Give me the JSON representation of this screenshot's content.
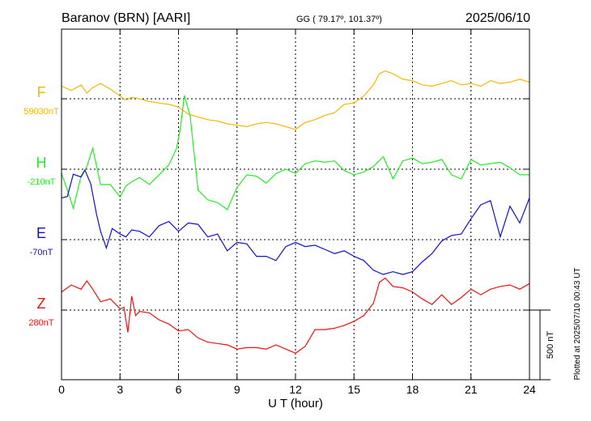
{
  "header": {
    "station": "Baranov (BRN)  [AARI]",
    "coords": "GG ( 79.17º, 101.37º)",
    "date": "2025/06/10"
  },
  "plotted_note": "Plotted at 2025/07/10 00:43 UT",
  "chart_data": {
    "type": "line",
    "xlabel": "U T (hour)",
    "ylabel": "",
    "xlim": [
      0,
      24
    ],
    "x_ticks": [
      0,
      3,
      6,
      9,
      12,
      15,
      18,
      21,
      24
    ],
    "grid": true,
    "scale_bar_label": "500 nT",
    "scale_bar_value_nT": 500,
    "series": [
      {
        "name": "F",
        "baseline_label": "59030nT",
        "baseline_nT": 59030,
        "color": "#f5b800",
        "x": [
          0,
          0.5,
          1,
          1.3,
          1.6,
          2,
          2.5,
          3,
          3.3,
          3.6,
          4,
          4.5,
          5,
          5.5,
          6,
          6.5,
          7,
          7.5,
          8,
          8.5,
          9,
          9.5,
          10,
          10.5,
          11,
          11.5,
          12,
          12.5,
          13,
          13.5,
          14,
          14.5,
          15,
          15.5,
          16,
          16.3,
          16.6,
          17,
          17.5,
          18,
          18.5,
          19,
          19.5,
          20,
          20.5,
          21,
          21.5,
          22,
          22.5,
          23,
          23.5,
          24
        ],
        "y": [
          90,
          60,
          100,
          40,
          80,
          110,
          70,
          20,
          -10,
          10,
          0,
          -20,
          -30,
          -40,
          -60,
          -110,
          -130,
          -150,
          -160,
          -180,
          -190,
          -200,
          -180,
          -170,
          -180,
          -200,
          -220,
          -170,
          -150,
          -120,
          -100,
          -40,
          -30,
          20,
          100,
          180,
          200,
          180,
          140,
          130,
          100,
          90,
          110,
          130,
          100,
          110,
          90,
          130,
          110,
          120,
          140,
          120
        ]
      },
      {
        "name": "H",
        "baseline_label": "-210nT",
        "baseline_nT": -210,
        "color": "#22ee22",
        "x": [
          0,
          0.3,
          0.6,
          1,
          1.3,
          1.6,
          2,
          2.5,
          3,
          3.3,
          3.6,
          4,
          4.5,
          5,
          5.5,
          5.9,
          6.1,
          6.3,
          6.6,
          7,
          7.5,
          8,
          8.5,
          9,
          9.5,
          10,
          10.5,
          11,
          11.5,
          12,
          12.5,
          13,
          13.5,
          14,
          14.5,
          15,
          15.5,
          16,
          16.5,
          17,
          17.5,
          18,
          18.5,
          19,
          19.5,
          20,
          20.5,
          21,
          21.5,
          22,
          22.5,
          23,
          23.5,
          24
        ],
        "y": [
          -30,
          -150,
          -280,
          -50,
          20,
          150,
          -110,
          -110,
          -200,
          -120,
          -90,
          -60,
          -110,
          -40,
          30,
          150,
          300,
          530,
          380,
          -150,
          -220,
          -240,
          -290,
          -130,
          -40,
          -50,
          -100,
          -30,
          0,
          -30,
          40,
          60,
          50,
          60,
          -10,
          -40,
          -20,
          20,
          90,
          -70,
          60,
          80,
          40,
          50,
          70,
          -40,
          -70,
          70,
          30,
          40,
          50,
          10,
          -40,
          -40
        ]
      },
      {
        "name": "E",
        "baseline_label": "-70nT",
        "baseline_nT": -70,
        "color": "#1111cc",
        "x": [
          0,
          0.3,
          0.6,
          1,
          1.2,
          1.5,
          1.8,
          2,
          2.3,
          2.6,
          3,
          3.3,
          3.6,
          4,
          4.5,
          5,
          5.5,
          6,
          6.5,
          7,
          7.5,
          8,
          8.5,
          9,
          9.5,
          10,
          10.5,
          11,
          11.5,
          12,
          12.5,
          13,
          13.5,
          14,
          14.5,
          15,
          15.5,
          16,
          16.5,
          17,
          17.5,
          18,
          18.5,
          19,
          19.5,
          20,
          20.5,
          21,
          21.5,
          22,
          22.5,
          23,
          23.5,
          24
        ],
        "y": [
          300,
          310,
          470,
          450,
          500,
          400,
          180,
          60,
          -60,
          80,
          40,
          20,
          70,
          60,
          20,
          100,
          130,
          60,
          120,
          110,
          20,
          40,
          -80,
          -20,
          -30,
          -120,
          -120,
          -150,
          -50,
          -20,
          -50,
          -40,
          -70,
          -100,
          -80,
          -120,
          -150,
          -220,
          -250,
          -230,
          -250,
          -230,
          -160,
          -100,
          -10,
          30,
          40,
          150,
          250,
          280,
          20,
          240,
          120,
          300
        ]
      },
      {
        "name": "Z",
        "baseline_label": "280nT",
        "baseline_nT": 280,
        "color": "#ee1111",
        "x": [
          0,
          0.5,
          1,
          1.3,
          1.6,
          2,
          2.5,
          3,
          3.2,
          3.4,
          3.6,
          3.8,
          4,
          4.5,
          5,
          5.5,
          6,
          6.5,
          7,
          7.5,
          8,
          8.5,
          9,
          9.5,
          10,
          10.5,
          11,
          11.5,
          12,
          12.5,
          13,
          13.5,
          14,
          14.5,
          15,
          15.5,
          16,
          16.3,
          16.6,
          17,
          17.5,
          18,
          18.5,
          19,
          19.5,
          20,
          20.5,
          21,
          21.5,
          22,
          22.5,
          23,
          23.5,
          24
        ],
        "y": [
          130,
          180,
          150,
          210,
          150,
          60,
          80,
          10,
          20,
          -160,
          100,
          -40,
          -10,
          -20,
          -70,
          -100,
          -150,
          -140,
          -200,
          -230,
          -240,
          -250,
          -280,
          -270,
          -270,
          -280,
          -250,
          -280,
          -310,
          -260,
          -140,
          -140,
          -130,
          -110,
          -80,
          -40,
          50,
          200,
          230,
          170,
          160,
          130,
          80,
          40,
          110,
          40,
          90,
          150,
          110,
          150,
          170,
          180,
          150,
          190
        ]
      }
    ]
  }
}
